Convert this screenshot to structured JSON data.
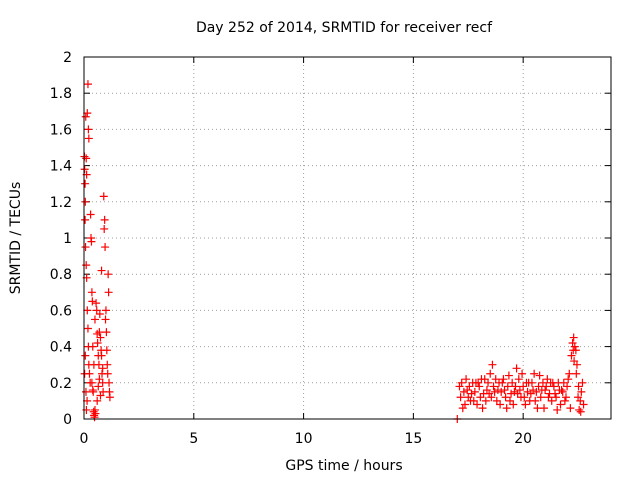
{
  "chart_data": {
    "type": "scatter",
    "title": "Day 252 of 2014, SRMTID for receiver recf",
    "xlabel": "GPS time / hours",
    "ylabel": "SRMTID / TECUs",
    "xlim": [
      0,
      24
    ],
    "ylim": [
      0,
      2
    ],
    "grid": true,
    "marker": "+",
    "marker_color": "#ff0000",
    "x_ticks": [
      "0",
      "5",
      "10",
      "15",
      "20"
    ],
    "x_tick_values": [
      0,
      5,
      10,
      15,
      20
    ],
    "y_ticks": [
      "0",
      "0.2",
      "0.4",
      "0.6",
      "0.8",
      "1",
      "1.2",
      "1.4",
      "1.6",
      "1.8",
      "2"
    ],
    "y_tick_values": [
      0,
      0.2,
      0.4,
      0.6,
      0.8,
      1.0,
      1.2,
      1.4,
      1.6,
      1.8,
      2.0
    ],
    "series": [
      {
        "name": "recf",
        "points": [
          [
            0.02,
            1.45
          ],
          [
            0.03,
            1.38
          ],
          [
            0.05,
            1.3
          ],
          [
            0.06,
            1.2
          ],
          [
            0.08,
            1.67
          ],
          [
            0.1,
            1.44
          ],
          [
            0.12,
            1.35
          ],
          [
            0.15,
            1.69
          ],
          [
            0.18,
            1.85
          ],
          [
            0.2,
            1.6
          ],
          [
            0.22,
            1.55
          ],
          [
            0.05,
            1.1
          ],
          [
            0.07,
            0.95
          ],
          [
            0.1,
            0.85
          ],
          [
            0.12,
            0.78
          ],
          [
            0.15,
            0.6
          ],
          [
            0.18,
            0.5
          ],
          [
            0.2,
            0.4
          ],
          [
            0.22,
            0.3
          ],
          [
            0.25,
            0.25
          ],
          [
            0.28,
            0.2
          ],
          [
            0.03,
            0.25
          ],
          [
            0.06,
            0.35
          ],
          [
            0.09,
            0.15
          ],
          [
            0.11,
            0.05
          ],
          [
            0.14,
            0.1
          ],
          [
            0.3,
            1.13
          ],
          [
            0.32,
            1.0
          ],
          [
            0.34,
            0.98
          ],
          [
            0.36,
            0.7
          ],
          [
            0.38,
            0.65
          ],
          [
            0.4,
            0.4
          ],
          [
            0.42,
            0.15
          ],
          [
            0.44,
            0.04
          ],
          [
            0.46,
            0.02
          ],
          [
            0.48,
            0.01
          ],
          [
            0.5,
            0.05
          ],
          [
            0.52,
            0.03
          ],
          [
            0.36,
            0.2
          ],
          [
            0.4,
            0.16
          ],
          [
            0.45,
            0.3
          ],
          [
            0.5,
            0.55
          ],
          [
            0.55,
            0.64
          ],
          [
            0.58,
            0.6
          ],
          [
            0.6,
            0.47
          ],
          [
            0.62,
            0.42
          ],
          [
            0.65,
            0.35
          ],
          [
            0.68,
            0.3
          ],
          [
            0.7,
            0.48
          ],
          [
            0.72,
            0.58
          ],
          [
            0.75,
            0.45
          ],
          [
            0.78,
            0.38
          ],
          [
            0.8,
            0.82
          ],
          [
            0.82,
            0.25
          ],
          [
            0.85,
            0.2
          ],
          [
            0.87,
            0.15
          ],
          [
            0.9,
            1.23
          ],
          [
            0.92,
            1.05
          ],
          [
            0.94,
            1.1
          ],
          [
            0.96,
            0.95
          ],
          [
            0.98,
            0.55
          ],
          [
            1.0,
            0.6
          ],
          [
            1.02,
            0.48
          ],
          [
            1.04,
            0.38
          ],
          [
            1.06,
            0.3
          ],
          [
            1.08,
            0.25
          ],
          [
            1.1,
            0.8
          ],
          [
            1.12,
            0.7
          ],
          [
            1.14,
            0.2
          ],
          [
            1.16,
            0.15
          ],
          [
            1.18,
            0.12
          ],
          [
            0.6,
            0.1
          ],
          [
            0.65,
            0.18
          ],
          [
            0.7,
            0.22
          ],
          [
            0.75,
            0.13
          ],
          [
            0.8,
            0.35
          ],
          [
            0.85,
            0.28
          ],
          [
            17.0,
            0.0
          ],
          [
            17.1,
            0.18
          ],
          [
            17.2,
            0.2
          ],
          [
            17.3,
            0.15
          ],
          [
            17.4,
            0.22
          ],
          [
            17.5,
            0.12
          ],
          [
            17.6,
            0.1
          ],
          [
            17.7,
            0.2
          ],
          [
            17.8,
            0.15
          ],
          [
            17.9,
            0.08
          ],
          [
            18.0,
            0.18
          ],
          [
            18.1,
            0.22
          ],
          [
            18.2,
            0.14
          ],
          [
            18.3,
            0.1
          ],
          [
            18.4,
            0.2
          ],
          [
            18.5,
            0.25
          ],
          [
            18.6,
            0.3
          ],
          [
            18.7,
            0.15
          ],
          [
            18.8,
            0.1
          ],
          [
            18.9,
            0.2
          ],
          [
            19.0,
            0.15
          ],
          [
            19.1,
            0.22
          ],
          [
            19.2,
            0.12
          ],
          [
            19.3,
            0.18
          ],
          [
            19.4,
            0.1
          ],
          [
            19.5,
            0.2
          ],
          [
            19.6,
            0.15
          ],
          [
            19.7,
            0.28
          ],
          [
            19.8,
            0.22
          ],
          [
            19.9,
            0.12
          ],
          [
            20.0,
            0.18
          ],
          [
            20.1,
            0.08
          ],
          [
            20.2,
            0.15
          ],
          [
            20.3,
            0.1
          ],
          [
            20.4,
            0.2
          ],
          [
            20.5,
            0.25
          ],
          [
            20.6,
            0.15
          ],
          [
            20.7,
            0.18
          ],
          [
            20.8,
            0.12
          ],
          [
            20.9,
            0.2
          ],
          [
            21.0,
            0.16
          ],
          [
            21.1,
            0.22
          ],
          [
            21.2,
            0.14
          ],
          [
            21.3,
            0.1
          ],
          [
            21.4,
            0.18
          ],
          [
            21.5,
            0.12
          ],
          [
            21.6,
            0.2
          ],
          [
            21.7,
            0.08
          ],
          [
            21.8,
            0.15
          ],
          [
            21.9,
            0.1
          ],
          [
            22.0,
            0.18
          ],
          [
            22.1,
            0.25
          ],
          [
            22.2,
            0.35
          ],
          [
            22.25,
            0.42
          ],
          [
            22.3,
            0.45
          ],
          [
            22.35,
            0.4
          ],
          [
            22.4,
            0.38
          ],
          [
            22.45,
            0.3
          ],
          [
            22.5,
            0.12
          ],
          [
            22.55,
            0.05
          ],
          [
            22.6,
            0.1
          ],
          [
            22.65,
            0.15
          ],
          [
            22.7,
            0.2
          ],
          [
            22.75,
            0.08
          ],
          [
            17.15,
            0.12
          ],
          [
            17.35,
            0.08
          ],
          [
            17.55,
            0.18
          ],
          [
            17.75,
            0.1
          ],
          [
            17.95,
            0.2
          ],
          [
            18.15,
            0.06
          ],
          [
            18.35,
            0.16
          ],
          [
            18.55,
            0.12
          ],
          [
            18.75,
            0.22
          ],
          [
            18.95,
            0.08
          ],
          [
            19.15,
            0.16
          ],
          [
            19.35,
            0.24
          ],
          [
            19.55,
            0.08
          ],
          [
            19.75,
            0.14
          ],
          [
            19.95,
            0.25
          ],
          [
            20.15,
            0.2
          ],
          [
            20.35,
            0.14
          ],
          [
            20.55,
            0.1
          ],
          [
            20.75,
            0.24
          ],
          [
            20.95,
            0.06
          ],
          [
            21.15,
            0.12
          ],
          [
            21.35,
            0.2
          ],
          [
            21.55,
            0.05
          ],
          [
            21.75,
            0.16
          ],
          [
            21.95,
            0.12
          ],
          [
            22.15,
            0.06
          ],
          [
            22.05,
            0.22
          ],
          [
            21.85,
            0.2
          ],
          [
            17.25,
            0.06
          ],
          [
            17.45,
            0.16
          ],
          [
            17.65,
            0.14
          ],
          [
            17.85,
            0.2
          ],
          [
            18.05,
            0.12
          ],
          [
            18.25,
            0.22
          ],
          [
            18.45,
            0.14
          ],
          [
            18.65,
            0.18
          ],
          [
            18.85,
            0.16
          ],
          [
            19.05,
            0.2
          ],
          [
            19.25,
            0.06
          ],
          [
            19.45,
            0.14
          ],
          [
            19.65,
            0.18
          ],
          [
            19.85,
            0.16
          ],
          [
            20.05,
            0.12
          ],
          [
            20.25,
            0.2
          ],
          [
            20.45,
            0.16
          ],
          [
            20.65,
            0.06
          ],
          [
            20.85,
            0.16
          ],
          [
            21.05,
            0.18
          ],
          [
            21.25,
            0.2
          ],
          [
            21.45,
            0.14
          ],
          [
            21.65,
            0.16
          ],
          [
            22.28,
            0.38
          ],
          [
            22.32,
            0.32
          ],
          [
            22.42,
            0.25
          ],
          [
            22.52,
            0.18
          ],
          [
            22.62,
            0.04
          ]
        ]
      }
    ]
  }
}
